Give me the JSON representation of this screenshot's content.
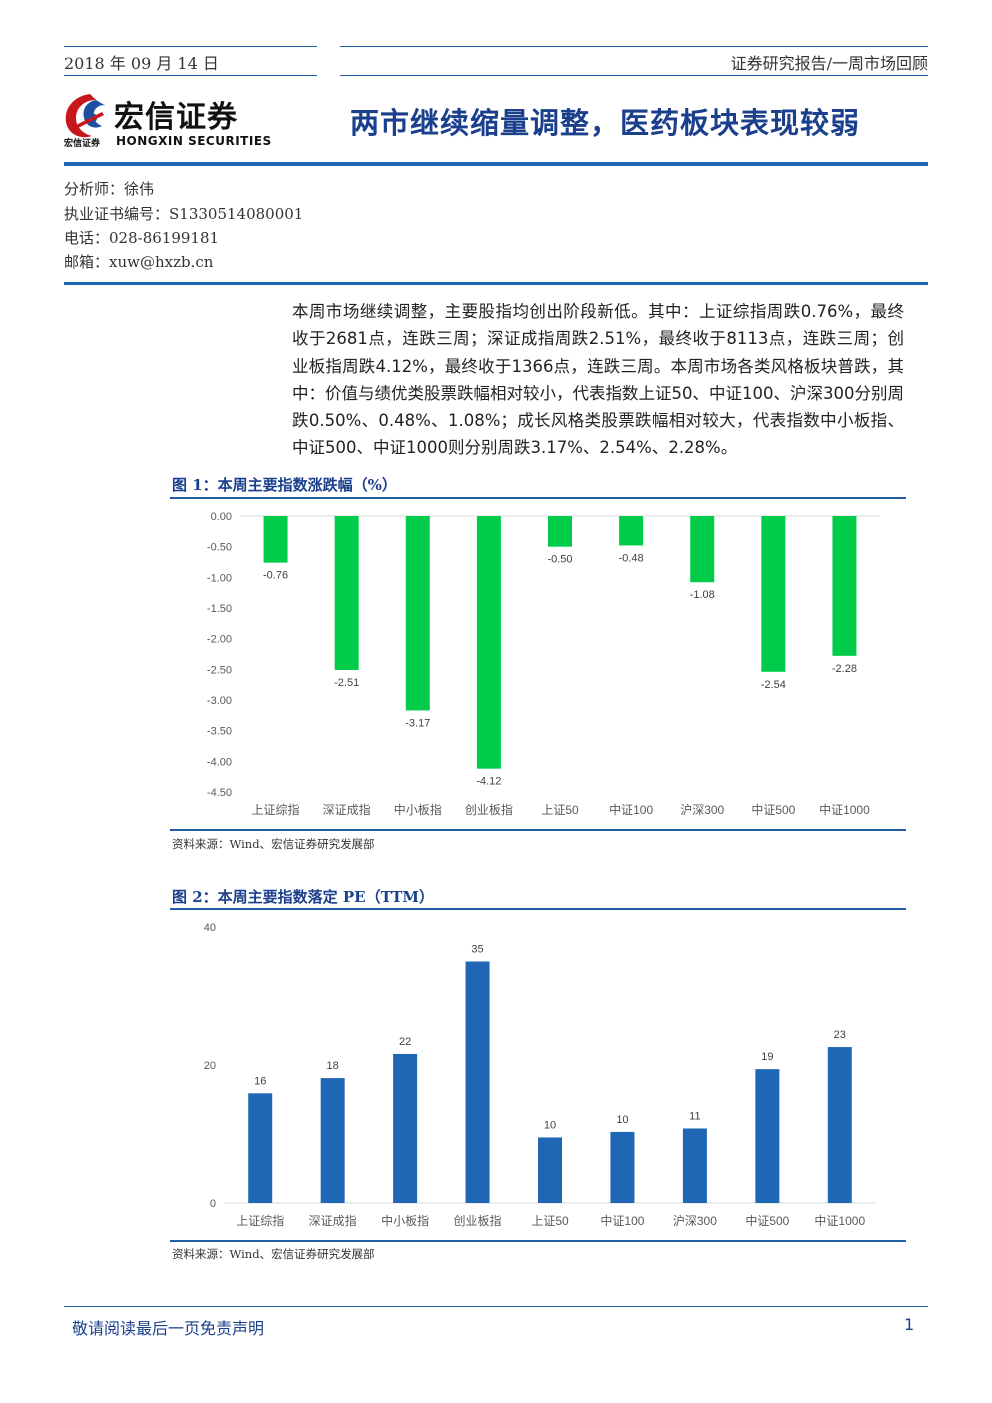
{
  "header": {
    "date": "2018 年 09 月 14 日",
    "breadcrumb": "证券研究报告/一周市场回顾",
    "logo_cn": "宏信证券",
    "logo_small": "宏信证券",
    "logo_en": "HONGXIN SECURITIES",
    "title": "两市继续缩量调整，医药板块表现较弱"
  },
  "analyst": {
    "name_line": "分析师：徐伟",
    "cert_line": "执业证书编号：S1330514080001",
    "phone_line": "电话：028-86199181",
    "email_line": "邮箱：xuw@hxzb.cn"
  },
  "summary": "本周市场继续调整，主要股指均创出阶段新低。其中：上证综指周跌0.76%，最终收于2681点，连跌三周；深证成指周跌2.51%，最终收于8113点，连跌三周；创业板指周跌4.12%，最终收于1366点，连跌三周。本周市场各类风格板块普跌，其中：价值与绩优类股票跌幅相对较小，代表指数上证50、中证100、沪深300分别周跌0.50%、0.48%、1.08%；成长风格类股票跌幅相对较大，代表指数中小板指、中证500、中证1000则分别周跌3.17%、2.54%、2.28%。",
  "figure1": {
    "title": "图 1：本周主要指数涨跌幅（%）",
    "source": "资料来源：Wind、宏信证券研究发展部"
  },
  "figure2": {
    "title": "图 2：本周主要指数落定 PE（TTM）",
    "source": "资料来源：Wind、宏信证券研究发展部"
  },
  "chart_data": [
    {
      "type": "bar",
      "categories": [
        "上证综指",
        "深证成指",
        "中小板指",
        "创业板指",
        "上证50",
        "中证100",
        "沪深300",
        "中证500",
        "中证1000"
      ],
      "values": [
        -0.76,
        -2.51,
        -3.17,
        -4.12,
        -0.5,
        -0.48,
        -1.08,
        -2.54,
        -2.28
      ],
      "value_labels": [
        "-0.76",
        "-2.51",
        "-3.17",
        "-4.12",
        "-0.50",
        "-0.48",
        "-1.08",
        "-2.54",
        "-2.28"
      ],
      "ylim": [
        -4.5,
        0
      ],
      "yticks": [
        "0.00",
        "-0.50",
        "-1.00",
        "-1.50",
        "-2.00",
        "-2.50",
        "-3.00",
        "-3.50",
        "-4.00",
        "-4.50"
      ],
      "ytick_values": [
        0,
        -0.5,
        -1,
        -1.5,
        -2,
        -2.5,
        -3,
        -3.5,
        -4,
        -4.5
      ],
      "color": "#00cc4a",
      "grid": false
    },
    {
      "type": "bar",
      "categories": [
        "上证综指",
        "深证成指",
        "中小板指",
        "创业板指",
        "上证50",
        "中证100",
        "沪深300",
        "中证500",
        "中证1000"
      ],
      "values": [
        16,
        18,
        22,
        35,
        10,
        10,
        11,
        19,
        23
      ],
      "value_labels": [
        "16",
        "18",
        "22",
        "35",
        "10",
        "10",
        "11",
        "19",
        "23"
      ],
      "bar_values": [
        15.9,
        18.1,
        21.6,
        35.0,
        9.5,
        10.3,
        10.8,
        19.4,
        22.6
      ],
      "ylim": [
        0,
        40
      ],
      "yticks": [
        "0",
        "20",
        "40"
      ],
      "ytick_values": [
        0,
        20,
        40
      ],
      "color": "#1f66b4",
      "grid": false
    }
  ],
  "footer": {
    "disclaimer": "敬请阅读最后一页免责声明",
    "page_number": "1"
  }
}
